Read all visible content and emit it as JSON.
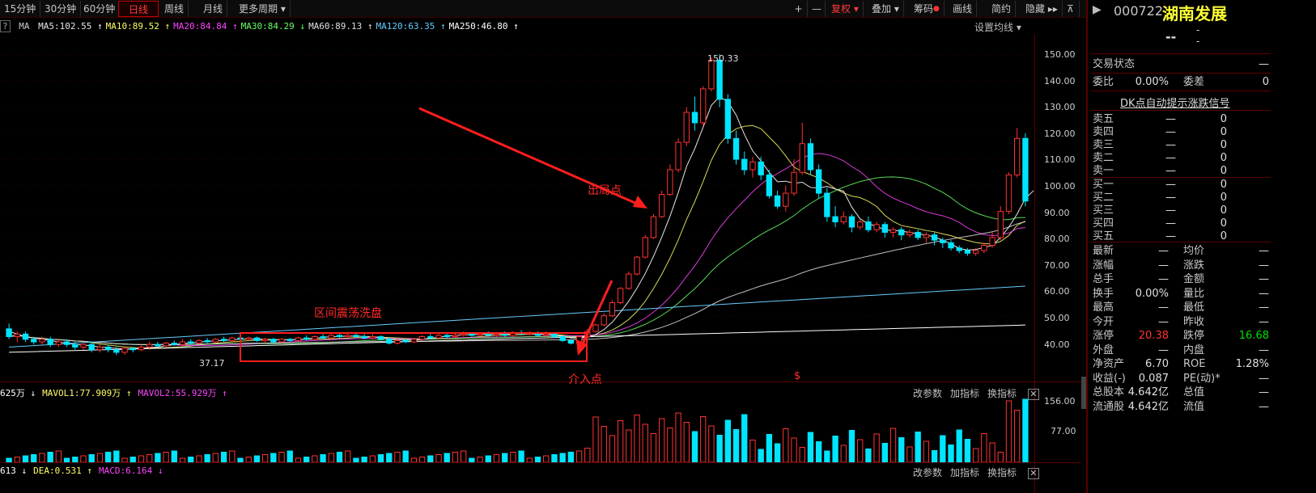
{
  "toolbar": {
    "periods": [
      "15分钟",
      "30分钟",
      "60分钟",
      "日线",
      "周线",
      "月线",
      "更多周期 ▾"
    ],
    "active_period": "日线",
    "right_buttons": [
      "+",
      "—",
      "复权 ▾",
      "叠加 ▾",
      "筹码",
      "画线",
      "简约",
      "隐藏 ▸▸"
    ]
  },
  "ma_legend": {
    "help": "?",
    "label": "MA",
    "items": [
      {
        "text": "MA5:102.55",
        "arrow": "↑",
        "color": "#e8e8e8"
      },
      {
        "text": "MA10:89.52",
        "arrow": "↑",
        "color": "#ffff66"
      },
      {
        "text": "MA20:84.84",
        "arrow": "↑",
        "color": "#ff44ff"
      },
      {
        "text": "MA30:84.29",
        "arrow": "↓",
        "color": "#66ff66"
      },
      {
        "text": "MA60:89.13",
        "arrow": "↑",
        "color": "#e0e0e0"
      },
      {
        "text": "MA120:63.35",
        "arrow": "↑",
        "color": "#66ccff"
      },
      {
        "text": "MA250:46.80",
        "arrow": "↑",
        "color": "#ffffff"
      }
    ],
    "settings": "设置均线 ▾"
  },
  "price_axis": [
    "150.00",
    "140.00",
    "130.00",
    "120.00",
    "110.00",
    "100.00",
    "90.00",
    "80.00",
    "70.00",
    "60.00",
    "50.00",
    "40.00"
  ],
  "max_label": "150.33",
  "min_label": "37.17",
  "annotations": {
    "exit": "出局点",
    "range": "区间震荡洗盘",
    "entry": "介入点"
  },
  "marker_dollar": "$",
  "volume": {
    "legend": [
      {
        "text": "625万",
        "arrow": "↓",
        "color": "#ffffff"
      },
      {
        "text": "MAVOL1:77.909万",
        "arrow": "↑",
        "color": "#ffff66"
      },
      {
        "text": "MAVOL2:55.929万",
        "arrow": "↑",
        "color": "#ff44ff"
      }
    ],
    "axis": [
      "156.00",
      "77.00"
    ],
    "tools": [
      "改参数",
      "加指标",
      "换指标"
    ]
  },
  "macd": {
    "legend": [
      {
        "text": "613",
        "arrow": "↓",
        "color": "#ffffff"
      },
      {
        "text": "DEA:0.531",
        "arrow": "↑",
        "color": "#ffff66"
      },
      {
        "text": "MACD:6.164",
        "arrow": "↓",
        "color": "#ff44ff"
      }
    ],
    "tools": [
      "改参数",
      "加指标",
      "换指标"
    ]
  },
  "stock": {
    "code": "000722",
    "name": "湖南发展",
    "price": "--",
    "change": "-",
    "pct": "-"
  },
  "panel": {
    "trade_status_label": "交易状态",
    "trade_status_value": "—",
    "weibi_label": "委比",
    "weibi_value": "0.00%",
    "weicha_label": "委差",
    "weicha_value": "0",
    "dk_title": "DK点自动提示涨跌信号",
    "sell": [
      {
        "label": "卖五",
        "price": "—",
        "vol": "0"
      },
      {
        "label": "卖四",
        "price": "—",
        "vol": "0"
      },
      {
        "label": "卖三",
        "price": "—",
        "vol": "0"
      },
      {
        "label": "卖二",
        "price": "—",
        "vol": "0"
      },
      {
        "label": "卖一",
        "price": "—",
        "vol": "0"
      }
    ],
    "buy": [
      {
        "label": "买一",
        "price": "—",
        "vol": "0"
      },
      {
        "label": "买二",
        "price": "—",
        "vol": "0"
      },
      {
        "label": "买三",
        "price": "—",
        "vol": "0"
      },
      {
        "label": "买四",
        "price": "—",
        "vol": "0"
      },
      {
        "label": "买五",
        "price": "—",
        "vol": "0"
      }
    ],
    "stats": [
      {
        "k": "最新",
        "v": "—",
        "k2": "均价",
        "v2": "—"
      },
      {
        "k": "涨幅",
        "v": "—",
        "k2": "涨跌",
        "v2": "—"
      },
      {
        "k": "总手",
        "v": "—",
        "k2": "金额",
        "v2": "—"
      },
      {
        "k": "换手",
        "v": "0.00%",
        "k2": "量比",
        "v2": "—"
      },
      {
        "k": "最高",
        "v": "—",
        "k2": "最低",
        "v2": "—"
      },
      {
        "k": "今开",
        "v": "—",
        "k2": "昨收",
        "v2": "—"
      },
      {
        "k": "涨停",
        "v": "20.38",
        "k2": "跌停",
        "v2": "16.68"
      },
      {
        "k": "外盘",
        "v": "—",
        "k2": "内盘",
        "v2": "—"
      },
      {
        "k": "净资产",
        "v": "6.70",
        "k2": "ROE",
        "v2": "1.28%"
      },
      {
        "k": "收益(-)",
        "v": "0.087",
        "k2": "PE(动)*",
        "v2": "—"
      },
      {
        "k": "总股本",
        "v": "4.642亿",
        "k2": "总值",
        "v2": "—"
      },
      {
        "k": "流通股",
        "v": "4.642亿",
        "k2": "流值",
        "v2": "—"
      }
    ]
  },
  "colors": {
    "up": "#ff3232",
    "down": "#00e5ff",
    "ma5": "#e8e8e8",
    "ma10": "#ffff66",
    "ma20": "#ff44ff",
    "ma30": "#66ff66",
    "ma60": "#e0e0e0",
    "ma120": "#66ccff",
    "ma250": "#ffffff"
  },
  "chart_data": {
    "type": "candlestick",
    "ylim": [
      35,
      152
    ],
    "candles": [
      [
        45,
        42,
        47,
        41
      ],
      [
        42,
        43,
        44,
        40
      ],
      [
        43,
        41,
        44,
        40
      ],
      [
        41,
        40,
        42,
        39
      ],
      [
        40,
        41,
        42,
        39
      ],
      [
        41,
        39,
        42,
        38
      ],
      [
        39,
        40,
        41,
        38
      ],
      [
        40,
        39,
        41,
        38
      ],
      [
        39,
        38,
        40,
        37
      ],
      [
        38,
        39,
        40,
        37
      ],
      [
        39,
        37,
        40,
        36
      ],
      [
        37,
        38,
        39,
        36
      ],
      [
        38,
        37,
        39,
        36
      ],
      [
        37,
        36,
        38,
        35
      ],
      [
        36,
        37.5,
        38,
        35
      ],
      [
        37.5,
        37,
        38,
        36
      ],
      [
        37,
        38,
        39,
        36.5
      ],
      [
        38,
        39,
        40,
        37
      ],
      [
        39,
        38.5,
        40,
        38
      ],
      [
        38.5,
        39.5,
        40,
        38
      ],
      [
        39.5,
        39,
        40.5,
        38.5
      ],
      [
        39,
        40,
        41,
        38.5
      ],
      [
        40,
        39.5,
        41,
        39
      ],
      [
        39.5,
        40.5,
        41,
        39
      ],
      [
        40.5,
        40,
        41.5,
        39.5
      ],
      [
        40,
        41,
        41.5,
        39.5
      ],
      [
        41,
        40.5,
        42,
        40
      ],
      [
        40.5,
        41.5,
        42,
        40
      ],
      [
        41.5,
        41,
        42,
        40.5
      ],
      [
        41,
        41.5,
        42,
        40.5
      ],
      [
        41.5,
        40.5,
        42,
        40
      ],
      [
        40.5,
        41,
        41.5,
        39.5
      ],
      [
        41,
        40,
        41.5,
        39.5
      ],
      [
        40,
        41,
        41.5,
        39.5
      ],
      [
        41,
        40.5,
        41.5,
        40
      ],
      [
        40.5,
        41.5,
        42,
        40
      ],
      [
        41.5,
        41,
        42.5,
        40.5
      ],
      [
        41,
        42,
        42.5,
        40.5
      ],
      [
        42,
        41.5,
        43,
        41
      ],
      [
        41.5,
        42.5,
        43,
        41
      ],
      [
        42.5,
        42,
        43,
        41.5
      ],
      [
        42,
        42.5,
        43.5,
        41.5
      ],
      [
        42.5,
        42,
        43,
        41.5
      ],
      [
        42,
        41.5,
        43,
        41
      ],
      [
        41.5,
        42,
        43,
        41
      ],
      [
        42,
        41,
        42.5,
        40.5
      ],
      [
        41,
        39.5,
        41.5,
        39
      ],
      [
        39.5,
        40.5,
        41,
        39
      ],
      [
        40.5,
        40,
        41,
        39.5
      ],
      [
        40,
        41,
        41.5,
        39.5
      ],
      [
        41,
        42,
        42.5,
        40.5
      ],
      [
        42,
        41.5,
        43,
        41
      ],
      [
        41.5,
        42.5,
        43,
        41
      ],
      [
        42.5,
        42,
        43,
        41.5
      ],
      [
        42,
        42.5,
        43.5,
        41.5
      ],
      [
        42.5,
        43,
        44,
        42
      ],
      [
        43,
        42.5,
        43.5,
        42
      ],
      [
        42.5,
        43,
        43.5,
        42
      ],
      [
        43,
        42.5,
        44,
        42
      ],
      [
        42.5,
        43,
        43.5,
        42
      ],
      [
        43,
        42.5,
        44,
        42
      ],
      [
        42.5,
        43.5,
        44,
        42
      ],
      [
        43.5,
        43,
        44.5,
        42.5
      ],
      [
        43,
        43.5,
        44,
        42.5
      ],
      [
        43.5,
        42.5,
        44,
        42
      ],
      [
        42.5,
        43,
        44,
        42
      ],
      [
        43,
        42,
        43.5,
        41.5
      ],
      [
        42,
        40.5,
        42.5,
        40
      ],
      [
        40.5,
        39.5,
        41,
        39
      ],
      [
        39.5,
        42,
        42.5,
        39
      ],
      [
        42,
        44,
        45,
        41.5
      ],
      [
        44,
        46.5,
        47,
        43.5
      ],
      [
        46.5,
        50,
        51,
        46
      ],
      [
        50,
        55,
        56,
        49.5
      ],
      [
        55,
        60.5,
        61,
        54.5
      ],
      [
        60.5,
        66,
        67,
        60
      ],
      [
        66,
        72.5,
        73,
        65.5
      ],
      [
        72.5,
        80,
        81,
        72
      ],
      [
        80,
        88,
        89,
        79.5
      ],
      [
        88,
        96.5,
        98,
        87.5
      ],
      [
        96.5,
        106,
        108,
        96
      ],
      [
        106,
        116.5,
        118,
        105
      ],
      [
        116.5,
        128,
        130,
        115
      ],
      [
        128,
        124,
        134,
        121
      ],
      [
        124,
        137,
        138,
        123
      ],
      [
        137,
        148,
        149,
        136
      ],
      [
        148,
        133,
        150.3,
        130
      ],
      [
        133,
        118,
        135,
        116
      ],
      [
        118,
        110,
        121,
        108
      ],
      [
        110,
        106,
        113,
        104
      ],
      [
        106,
        109,
        111,
        103
      ],
      [
        109,
        104,
        111,
        102
      ],
      [
        104,
        96,
        106,
        95
      ],
      [
        96,
        92,
        98,
        91
      ],
      [
        92,
        97,
        100,
        90
      ],
      [
        97,
        105,
        110,
        96
      ],
      [
        105,
        116,
        124,
        104
      ],
      [
        116,
        106,
        118,
        104
      ],
      [
        106,
        97,
        108,
        95
      ],
      [
        97,
        88,
        99,
        86
      ],
      [
        88,
        86,
        92,
        84
      ],
      [
        86,
        88,
        90,
        85
      ],
      [
        88,
        84,
        89,
        82
      ],
      [
        84,
        86,
        87,
        83
      ],
      [
        86,
        83,
        88,
        82
      ],
      [
        83,
        85,
        86,
        82
      ],
      [
        85,
        82,
        86,
        80
      ],
      [
        82,
        83,
        84,
        80
      ],
      [
        83,
        81,
        84,
        79
      ],
      [
        81,
        82,
        83,
        80
      ],
      [
        82,
        80,
        83,
        79
      ],
      [
        80,
        81,
        82,
        78
      ],
      [
        81,
        79,
        82,
        77
      ],
      [
        79,
        78,
        80,
        76
      ],
      [
        78,
        76,
        79,
        75
      ],
      [
        76,
        75,
        77,
        74
      ],
      [
        75,
        74,
        76,
        73
      ],
      [
        74,
        75,
        76,
        73
      ],
      [
        75,
        77,
        78,
        74
      ],
      [
        77,
        80,
        82,
        76
      ],
      [
        80,
        90,
        92,
        79
      ],
      [
        90,
        104,
        105,
        89
      ],
      [
        104,
        118,
        122,
        103
      ],
      [
        118,
        94,
        120,
        92
      ]
    ],
    "ma5": [
      44,
      43,
      42,
      41.5,
      41,
      40.5,
      40,
      39.5,
      39,
      38.8,
      38.5,
      38,
      37.8,
      37.5,
      37.3,
      37.3,
      37.5,
      37.8,
      38,
      38.5,
      39,
      39.3,
      39.6,
      39.9,
      40.2,
      40.4,
      40.6,
      40.8,
      41,
      41.1,
      41.1,
      41,
      40.9,
      40.8,
      40.8,
      40.9,
      41.1,
      41.4,
      41.7,
      42,
      42.1,
      42.2,
      42.2,
      42.1,
      42,
      41.6,
      41.2,
      40.9,
      40.7,
      40.6,
      40.9,
      41.3,
      41.8,
      42.2,
      42.5,
      42.7,
      42.8,
      42.9,
      43,
      43,
      43,
      43.1,
      43.2,
      43.3,
      43.1,
      42.9,
      42.6,
      42.2,
      41.5,
      41.4,
      41.8,
      42.8,
      44.7,
      47.5,
      51.4,
      55.6,
      60.6,
      66.2,
      72.8,
      80.2,
      88.2,
      97.3,
      107.3,
      114.1,
      122.3,
      130.7,
      134,
      132,
      127,
      119.5,
      113.2,
      109.4,
      105,
      101.4,
      101.6,
      100.8,
      101.2,
      99.2,
      99,
      99.6,
      98.6,
      97.8,
      91.6,
      87.2,
      85.2,
      84.4,
      82.8,
      82.8,
      82.4,
      82,
      81.4,
      81,
      80.2,
      79,
      77.6,
      75.8,
      75.2,
      75.4,
      76.2,
      77,
      80,
      84,
      89,
      95,
      98
    ]
  }
}
